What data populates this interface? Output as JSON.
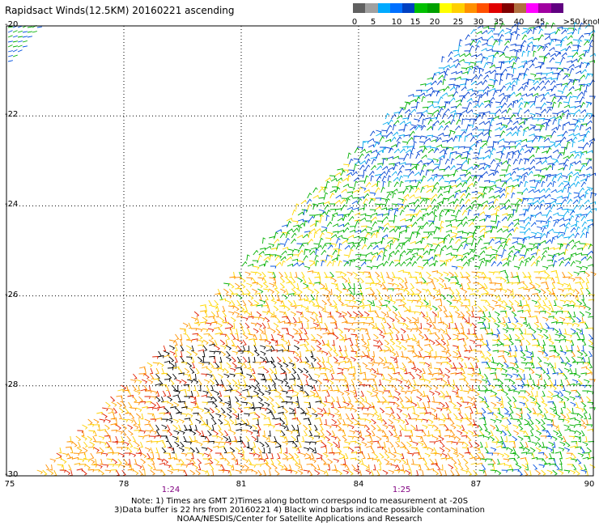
{
  "title": "Rapidsact Winds(12.5KM) 20160221 ascending",
  "scale": {
    "labels": [
      "0",
      "5",
      "10",
      "15",
      "20",
      "25",
      "30",
      "35",
      "40",
      "45",
      ">50 knots"
    ],
    "colors": [
      "#606060",
      "#a0a0a0",
      "#00aaff",
      "#0070ff",
      "#0040c0",
      "#00c000",
      "#00a000",
      "#ffff00",
      "#ffd000",
      "#ff9000",
      "#ff5000",
      "#e00000",
      "#800000",
      "#b07040",
      "#ff00ff",
      "#a000a0",
      "#600080"
    ]
  },
  "map": {
    "lon_ticks": [
      "75",
      "78",
      "81",
      "84",
      "87",
      "90"
    ],
    "lat_ticks": [
      "-20",
      "-22",
      "-24",
      "-26",
      "-28",
      "-30"
    ],
    "lon_range": [
      75,
      90
    ],
    "lat_range": [
      -20,
      -30
    ],
    "time_labels": [
      {
        "lon": 79.2,
        "text": "1:24"
      },
      {
        "lon": 85.1,
        "text": "1:25"
      }
    ]
  },
  "notes": {
    "line1": "Note: 1) Times are GMT 2)Times along bottom correspond to measurement at -20S",
    "line2": "3)Data buffer is 22 hrs from 20160221 4) Black wind barbs indicate possible contamination",
    "line3": "NOAA/NESDIS/Center for Satellite Applications and Research"
  }
}
